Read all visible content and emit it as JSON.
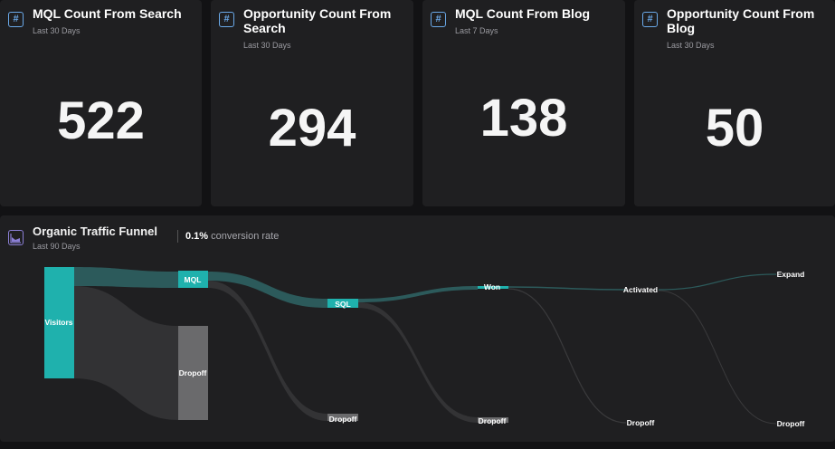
{
  "cards": [
    {
      "title": "MQL Count From Search",
      "period": "Last 30 Days",
      "value": "522"
    },
    {
      "title": "Opportunity Count From Search",
      "period": "Last 30 Days",
      "value": "294"
    },
    {
      "title": "MQL Count From Blog",
      "period": "Last 7 Days",
      "value": "138"
    },
    {
      "title": "Opportunity Count From Blog",
      "period": "Last 30 Days",
      "value": "50"
    }
  ],
  "funnel": {
    "title": "Organic Traffic Funnel",
    "period": "Last 90 Days",
    "conversion_value": "0.1%",
    "conversion_label": " conversion rate",
    "nodes": {
      "visitors": "Visitors",
      "mql": "MQL",
      "dropoff1": "Dropoff",
      "sql": "SQL",
      "dropoff2": "Dropoff",
      "won": "Won",
      "dropoff3": "Dropoff",
      "activated": "Activated",
      "dropoff4": "Dropoff",
      "expand": "Expand",
      "dropoff5": "Dropoff"
    }
  },
  "colors": {
    "teal": "#1fb1ad",
    "flow_teal": "#2c5a5b",
    "gray_node": "#6a6a6c",
    "flow_gray": "#333335",
    "card_bg": "#1f1f21"
  },
  "icons": {
    "metric": "hash-icon",
    "funnel": "area-chart-icon"
  }
}
